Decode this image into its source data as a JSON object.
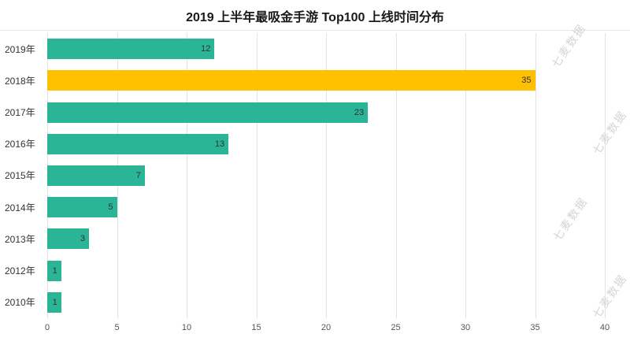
{
  "title": "2019 上半年最吸金手游 Top100 上线时间分布",
  "watermark": "七麦数据",
  "colors": {
    "bar": "#2ab597",
    "highlight": "#ffc000",
    "grid": "#e4e4e4",
    "value_label": "#333333"
  },
  "chart_data": {
    "type": "bar",
    "orientation": "horizontal",
    "title": "2019 上半年最吸金手游 Top100 上线时间分布",
    "categories": [
      "2019年",
      "2018年",
      "2017年",
      "2016年",
      "2015年",
      "2014年",
      "2013年",
      "2012年",
      "2010年"
    ],
    "values": [
      12,
      35,
      23,
      13,
      7,
      5,
      3,
      1,
      1
    ],
    "highlight_index": 1,
    "highlight_category": "2018年",
    "xlim": [
      0,
      40
    ],
    "xticks": [
      0,
      5,
      10,
      15,
      20,
      25,
      30,
      35,
      40
    ],
    "grid": true,
    "legend": "none"
  }
}
